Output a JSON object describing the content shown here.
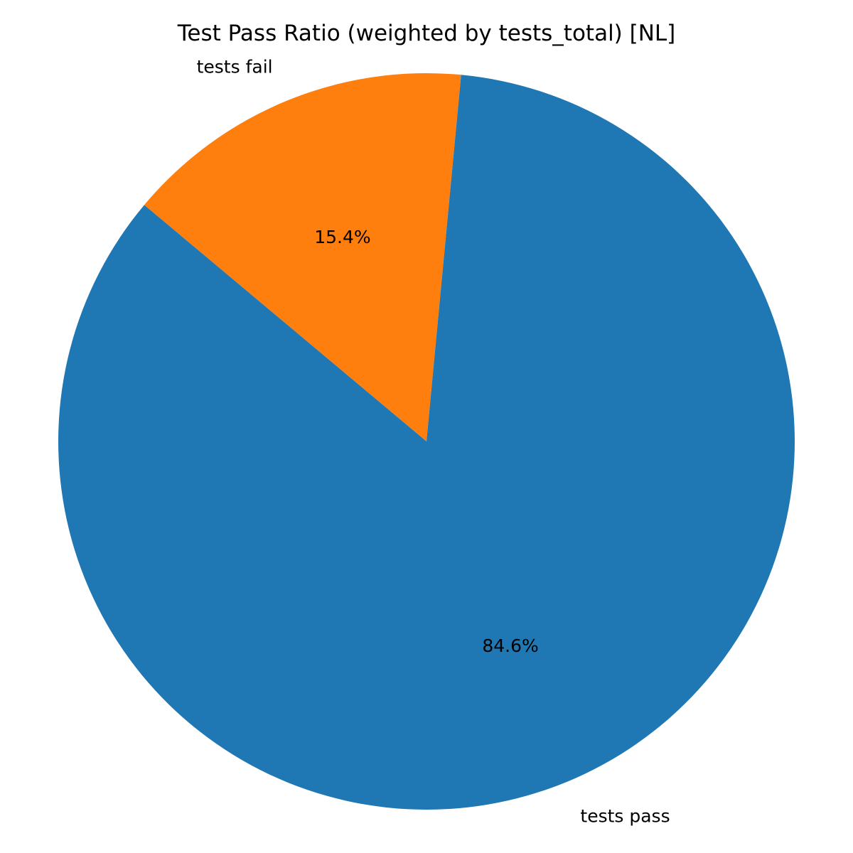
{
  "chart_data": {
    "type": "pie",
    "title": "Test Pass Ratio (weighted by tests_total) [NL]",
    "start_angle_deg": 84.6,
    "direction": "counterclockwise",
    "slices": [
      {
        "label": "tests fail",
        "value": 15.4,
        "pct_label": "15.4%",
        "color": "#ff7f0e"
      },
      {
        "label": "tests pass",
        "value": 84.6,
        "pct_label": "84.6%",
        "color": "#1f77b4"
      }
    ]
  }
}
